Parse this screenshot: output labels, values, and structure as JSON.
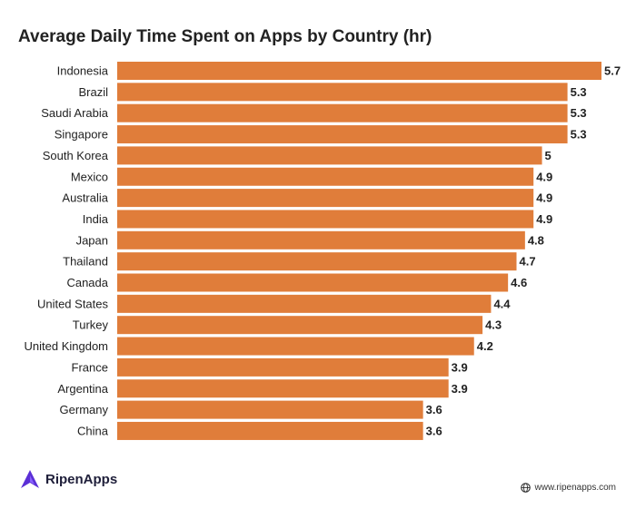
{
  "chart_data": {
    "type": "bar",
    "orientation": "horizontal",
    "title": "Average Daily Time Spent on Apps by Country (hr)",
    "categories": [
      "Indonesia",
      "Brazil",
      "Saudi Arabia",
      "Singapore",
      "South Korea",
      "Mexico",
      "Australia",
      "India",
      "Japan",
      "Thailand",
      "Canada",
      "United States",
      "Turkey",
      "United Kingdom",
      "France",
      "Argentina",
      "Germany",
      "China"
    ],
    "values": [
      5.7,
      5.3,
      5.3,
      5.3,
      5,
      4.9,
      4.9,
      4.9,
      4.8,
      4.7,
      4.6,
      4.4,
      4.3,
      4.2,
      3.9,
      3.9,
      3.6,
      3.6
    ],
    "xlim": [
      0,
      5.7
    ],
    "grid": false,
    "data_labels": true,
    "bar_color": "#e07d3a"
  },
  "brand": {
    "name": "RipenApps",
    "logo_color": "#5b2fd6",
    "logo_icon": "ripenapps-logo"
  },
  "footer": {
    "website": "www.ripenapps.com",
    "icon": "globe-icon"
  }
}
